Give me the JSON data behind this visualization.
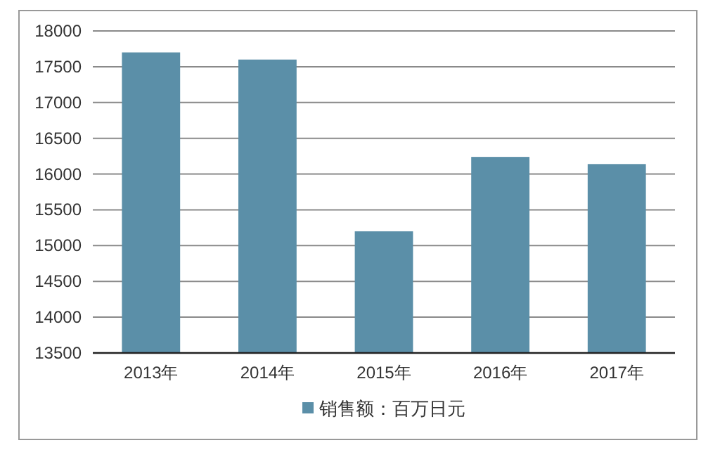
{
  "chart_data": {
    "type": "bar",
    "categories": [
      "2013年",
      "2014年",
      "2015年",
      "2016年",
      "2017年"
    ],
    "series": [
      {
        "name": "销售额：百万日元",
        "color": "#5b8fa8",
        "values": [
          17700,
          17600,
          15200,
          16240,
          16140
        ]
      }
    ],
    "ylim": [
      13500,
      18000
    ],
    "yticks": [
      13500,
      14000,
      14500,
      15000,
      15500,
      16000,
      16500,
      17000,
      17500,
      18000
    ],
    "grid": "y",
    "legend": "bottom"
  }
}
